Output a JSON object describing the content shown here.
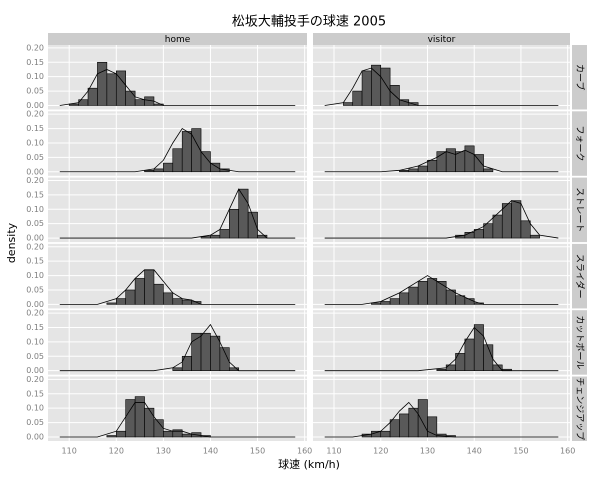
{
  "chart_data": {
    "type": "histogram",
    "title": "松坂大輔投手の球速 2005",
    "x_label": "球速 (km/h)",
    "y_label": "density",
    "columns": [
      "home",
      "visitor"
    ],
    "xlim": [
      105.5,
      160.5
    ],
    "xticks": [
      110,
      120,
      130,
      140,
      150,
      160
    ],
    "ylim": [
      -0.014,
      0.21
    ],
    "yticks": [
      {
        "value": 0,
        "label": "0.00"
      },
      {
        "value": 0.05,
        "label": "0.05"
      },
      {
        "value": 0.1,
        "label": "0.10"
      },
      {
        "value": 0.15,
        "label": "0.15"
      },
      {
        "value": 0.2,
        "label": "0.20"
      }
    ],
    "grid": true,
    "color": "#595959",
    "line_color": "#000000",
    "rows": [
      {
        "label": "カーブ",
        "panels": [
          {
            "bins": [
              110,
              112,
              114,
              116,
              118,
              120,
              122,
              124,
              126,
              128,
              130
            ],
            "values": [
              0.005,
              0.02,
              0.06,
              0.15,
              0.11,
              0.12,
              0.05,
              0.02,
              0.03,
              0.005
            ],
            "density_x": [
              108,
              112,
              114,
              116,
              118,
              120,
              122,
              124,
              126,
              128,
              130,
              158
            ],
            "density_y": [
              0,
              0.01,
              0.05,
              0.11,
              0.125,
              0.11,
              0.07,
              0.03,
              0.02,
              0.015,
              0,
              0
            ]
          },
          {
            "bins": [
              112,
              114,
              116,
              118,
              120,
              122,
              124,
              126,
              128
            ],
            "values": [
              0.01,
              0.05,
              0.12,
              0.14,
              0.13,
              0.07,
              0.02,
              0.01
            ],
            "density_x": [
              108,
              112,
              114,
              116,
              118,
              120,
              122,
              124,
              126,
              128,
              158
            ],
            "density_y": [
              0,
              0.01,
              0.06,
              0.12,
              0.13,
              0.1,
              0.05,
              0.02,
              0.01,
              0,
              0
            ]
          }
        ]
      },
      {
        "label": "フォーク",
        "panels": [
          {
            "bins": [
              126,
              128,
              130,
              132,
              134,
              136,
              138,
              140,
              142,
              144
            ],
            "values": [
              0.005,
              0.01,
              0.03,
              0.08,
              0.14,
              0.15,
              0.07,
              0.03,
              0.01
            ],
            "density_x": [
              108,
              124,
              128,
              130,
              132,
              134,
              136,
              138,
              140,
              142,
              146,
              158
            ],
            "density_y": [
              0,
              0,
              0.01,
              0.04,
              0.1,
              0.15,
              0.13,
              0.07,
              0.03,
              0.01,
              0,
              0
            ]
          },
          {
            "bins": [
              124,
              126,
              128,
              130,
              132,
              134,
              136,
              138,
              140,
              142,
              144
            ],
            "values": [
              0.005,
              0.01,
              0.02,
              0.04,
              0.07,
              0.08,
              0.07,
              0.09,
              0.06,
              0.01
            ],
            "density_x": [
              108,
              120,
              124,
              128,
              132,
              134,
              136,
              138,
              140,
              142,
              146,
              158
            ],
            "density_y": [
              0,
              0,
              0.005,
              0.02,
              0.05,
              0.07,
              0.06,
              0.075,
              0.06,
              0.02,
              0,
              0
            ]
          }
        ]
      },
      {
        "label": "ストレート",
        "panels": [
          {
            "bins": [
              138,
              140,
              142,
              144,
              146,
              148,
              150,
              152
            ],
            "values": [
              0.005,
              0.01,
              0.03,
              0.1,
              0.17,
              0.09,
              0.01
            ],
            "density_x": [
              108,
              136,
              140,
              142,
              144,
              146,
              148,
              150,
              152,
              158
            ],
            "density_y": [
              0,
              0,
              0.01,
              0.03,
              0.1,
              0.17,
              0.12,
              0.03,
              0,
              0
            ]
          },
          {
            "bins": [
              136,
              138,
              140,
              142,
              144,
              146,
              148,
              150,
              152,
              154
            ],
            "values": [
              0.01,
              0.02,
              0.03,
              0.05,
              0.08,
              0.12,
              0.13,
              0.06,
              0.01
            ],
            "density_x": [
              108,
              134,
              138,
              142,
              144,
              146,
              148,
              150,
              152,
              154,
              158
            ],
            "density_y": [
              0,
              0,
              0.01,
              0.04,
              0.07,
              0.1,
              0.13,
              0.12,
              0.05,
              0.01,
              0
            ]
          }
        ]
      },
      {
        "label": "スライダー",
        "panels": [
          {
            "bins": [
              118,
              120,
              122,
              124,
              126,
              128,
              130,
              132,
              134,
              136,
              138
            ],
            "values": [
              0.005,
              0.02,
              0.05,
              0.09,
              0.12,
              0.07,
              0.04,
              0.02,
              0.015,
              0.01
            ],
            "density_x": [
              108,
              116,
              120,
              122,
              124,
              126,
              128,
              130,
              132,
              134,
              136,
              138,
              158
            ],
            "density_y": [
              0,
              0,
              0.02,
              0.05,
              0.09,
              0.12,
              0.12,
              0.08,
              0.04,
              0.02,
              0.015,
              0,
              0
            ]
          },
          {
            "bins": [
              118,
              120,
              122,
              124,
              126,
              128,
              130,
              132,
              134,
              136,
              138,
              140,
              142
            ],
            "values": [
              0.005,
              0.01,
              0.02,
              0.04,
              0.06,
              0.08,
              0.09,
              0.08,
              0.05,
              0.03,
              0.02,
              0.005
            ],
            "density_x": [
              108,
              116,
              120,
              124,
              128,
              130,
              132,
              136,
              140,
              142,
              158
            ],
            "density_y": [
              0,
              0,
              0.01,
              0.04,
              0.08,
              0.1,
              0.08,
              0.04,
              0.01,
              0,
              0
            ]
          }
        ]
      },
      {
        "label": "カットボール",
        "panels": [
          {
            "bins": [
              132,
              134,
              136,
              138,
              140,
              142,
              144,
              146
            ],
            "values": [
              0.01,
              0.05,
              0.13,
              0.13,
              0.12,
              0.08,
              0.01
            ],
            "density_x": [
              108,
              128,
              132,
              134,
              136,
              138,
              140,
              142,
              144,
              146,
              158
            ],
            "density_y": [
              0,
              0,
              0.01,
              0.03,
              0.1,
              0.12,
              0.16,
              0.1,
              0.03,
              0,
              0
            ]
          },
          {
            "bins": [
              132,
              134,
              136,
              138,
              140,
              142,
              144,
              146,
              148
            ],
            "values": [
              0.005,
              0.02,
              0.06,
              0.11,
              0.16,
              0.09,
              0.02,
              0.005
            ],
            "density_x": [
              108,
              128,
              134,
              136,
              138,
              140,
              142,
              144,
              146,
              158
            ],
            "density_y": [
              0,
              0,
              0.01,
              0.04,
              0.1,
              0.15,
              0.12,
              0.04,
              0,
              0
            ]
          }
        ]
      },
      {
        "label": "チェンジアップ",
        "panels": [
          {
            "bins": [
              118,
              120,
              122,
              124,
              126,
              128,
              130,
              132,
              134,
              136,
              138,
              140
            ],
            "values": [
              0.005,
              0.02,
              0.13,
              0.14,
              0.1,
              0.06,
              0.02,
              0.025,
              0.01,
              0.015,
              0.005
            ],
            "density_x": [
              108,
              116,
              120,
              122,
              124,
              126,
              128,
              130,
              132,
              134,
              136,
              140,
              158
            ],
            "density_y": [
              0,
              0,
              0.02,
              0.07,
              0.12,
              0.12,
              0.07,
              0.03,
              0.02,
              0.02,
              0.01,
              0,
              0
            ]
          },
          {
            "bins": [
              116,
              118,
              120,
              122,
              124,
              126,
              128,
              130,
              132,
              134,
              136
            ],
            "values": [
              0.01,
              0.02,
              0.02,
              0.06,
              0.08,
              0.1,
              0.13,
              0.07,
              0.01,
              0.005
            ],
            "density_x": [
              108,
              114,
              118,
              120,
              122,
              124,
              126,
              128,
              130,
              132,
              136,
              158
            ],
            "density_y": [
              0,
              0,
              0.01,
              0.02,
              0.05,
              0.09,
              0.12,
              0.08,
              0.02,
              0.005,
              0,
              0
            ]
          }
        ]
      }
    ]
  }
}
